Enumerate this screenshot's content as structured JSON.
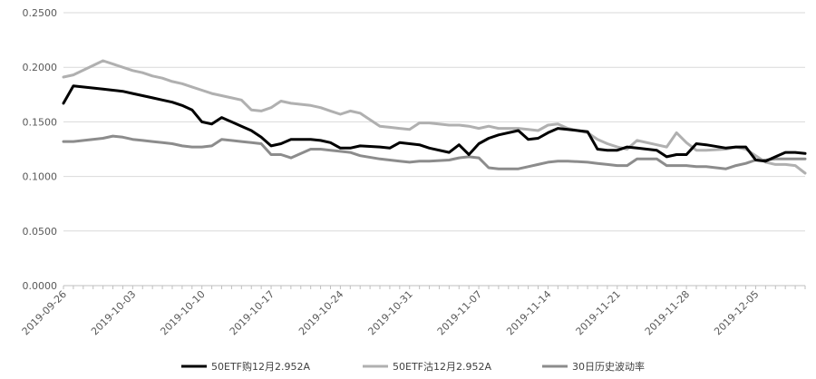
{
  "chart_data": {
    "type": "line",
    "title": "",
    "xlabel": "",
    "ylabel": "",
    "ylim": [
      0,
      0.25
    ],
    "y_ticks": [
      "0.0000",
      "0.0500",
      "0.1000",
      "0.1500",
      "0.2000",
      "0.2500"
    ],
    "x_ticks": [
      "2019-09-26",
      "2019-10-03",
      "2019-10-10",
      "2019-10-17",
      "2019-10-24",
      "2019-10-31",
      "2019-11-07",
      "2019-11-14",
      "2019-11-21",
      "2019-11-28",
      "2019-12-05"
    ],
    "x_start": "2019-09-26",
    "x_end": "2019-12-10",
    "grid": "horizontal",
    "legend_position": "bottom",
    "series": [
      {
        "name": "50ETF购12月2.952A",
        "color": "#000000",
        "points": [
          [
            "2019-09-26",
            0.167
          ],
          [
            "2019-09-27",
            0.183
          ],
          [
            "2019-09-30",
            0.18
          ],
          [
            "2019-10-01",
            0.179
          ],
          [
            "2019-10-02",
            0.178
          ],
          [
            "2019-10-03",
            0.176
          ],
          [
            "2019-10-04",
            0.174
          ],
          [
            "2019-10-05",
            0.172
          ],
          [
            "2019-10-06",
            0.17
          ],
          [
            "2019-10-07",
            0.168
          ],
          [
            "2019-10-08",
            0.165
          ],
          [
            "2019-10-09",
            0.161
          ],
          [
            "2019-10-10",
            0.15
          ],
          [
            "2019-10-11",
            0.148
          ],
          [
            "2019-10-12",
            0.154
          ],
          [
            "2019-10-14",
            0.146
          ],
          [
            "2019-10-15",
            0.142
          ],
          [
            "2019-10-16",
            0.136
          ],
          [
            "2019-10-17",
            0.128
          ],
          [
            "2019-10-18",
            0.13
          ],
          [
            "2019-10-19",
            0.134
          ],
          [
            "2019-10-21",
            0.134
          ],
          [
            "2019-10-22",
            0.133
          ],
          [
            "2019-10-23",
            0.131
          ],
          [
            "2019-10-24",
            0.126
          ],
          [
            "2019-10-25",
            0.126
          ],
          [
            "2019-10-26",
            0.128
          ],
          [
            "2019-10-28",
            0.127
          ],
          [
            "2019-10-29",
            0.126
          ],
          [
            "2019-10-30",
            0.131
          ],
          [
            "2019-10-31",
            0.13
          ],
          [
            "2019-11-01",
            0.129
          ],
          [
            "2019-11-02",
            0.126
          ],
          [
            "2019-11-04",
            0.122
          ],
          [
            "2019-11-05",
            0.129
          ],
          [
            "2019-11-06",
            0.12
          ],
          [
            "2019-11-07",
            0.13
          ],
          [
            "2019-11-08",
            0.135
          ],
          [
            "2019-11-09",
            0.138
          ],
          [
            "2019-11-11",
            0.142
          ],
          [
            "2019-11-12",
            0.134
          ],
          [
            "2019-11-13",
            0.135
          ],
          [
            "2019-11-14",
            0.14
          ],
          [
            "2019-11-15",
            0.144
          ],
          [
            "2019-11-16",
            0.143
          ],
          [
            "2019-11-18",
            0.141
          ],
          [
            "2019-11-19",
            0.125
          ],
          [
            "2019-11-20",
            0.124
          ],
          [
            "2019-11-21",
            0.124
          ],
          [
            "2019-11-22",
            0.127
          ],
          [
            "2019-11-23",
            0.126
          ],
          [
            "2019-11-25",
            0.124
          ],
          [
            "2019-11-26",
            0.118
          ],
          [
            "2019-11-27",
            0.12
          ],
          [
            "2019-11-28",
            0.12
          ],
          [
            "2019-11-29",
            0.13
          ],
          [
            "2019-11-30",
            0.129
          ],
          [
            "2019-12-02",
            0.126
          ],
          [
            "2019-12-03",
            0.127
          ],
          [
            "2019-12-04",
            0.127
          ],
          [
            "2019-12-05",
            0.115
          ],
          [
            "2019-12-06",
            0.114
          ],
          [
            "2019-12-07",
            0.118
          ],
          [
            "2019-12-08",
            0.122
          ],
          [
            "2019-12-09",
            0.122
          ],
          [
            "2019-12-10",
            0.121
          ]
        ]
      },
      {
        "name": "50ETF沽12月2.952A",
        "color": "#b0b0b0",
        "points": [
          [
            "2019-09-26",
            0.191
          ],
          [
            "2019-09-27",
            0.193
          ],
          [
            "2019-09-30",
            0.206
          ],
          [
            "2019-10-01",
            0.203
          ],
          [
            "2019-10-02",
            0.2
          ],
          [
            "2019-10-03",
            0.197
          ],
          [
            "2019-10-04",
            0.195
          ],
          [
            "2019-10-05",
            0.192
          ],
          [
            "2019-10-06",
            0.19
          ],
          [
            "2019-10-07",
            0.187
          ],
          [
            "2019-10-08",
            0.185
          ],
          [
            "2019-10-09",
            0.182
          ],
          [
            "2019-10-10",
            0.179
          ],
          [
            "2019-10-11",
            0.176
          ],
          [
            "2019-10-12",
            0.174
          ],
          [
            "2019-10-14",
            0.17
          ],
          [
            "2019-10-15",
            0.161
          ],
          [
            "2019-10-16",
            0.16
          ],
          [
            "2019-10-17",
            0.163
          ],
          [
            "2019-10-18",
            0.169
          ],
          [
            "2019-10-19",
            0.167
          ],
          [
            "2019-10-21",
            0.165
          ],
          [
            "2019-10-22",
            0.163
          ],
          [
            "2019-10-23",
            0.16
          ],
          [
            "2019-10-24",
            0.157
          ],
          [
            "2019-10-25",
            0.16
          ],
          [
            "2019-10-26",
            0.158
          ],
          [
            "2019-10-28",
            0.146
          ],
          [
            "2019-10-29",
            0.145
          ],
          [
            "2019-10-30",
            0.144
          ],
          [
            "2019-10-31",
            0.143
          ],
          [
            "2019-11-01",
            0.149
          ],
          [
            "2019-11-02",
            0.149
          ],
          [
            "2019-11-04",
            0.147
          ],
          [
            "2019-11-05",
            0.147
          ],
          [
            "2019-11-06",
            0.146
          ],
          [
            "2019-11-07",
            0.144
          ],
          [
            "2019-11-08",
            0.146
          ],
          [
            "2019-11-09",
            0.144
          ],
          [
            "2019-11-11",
            0.144
          ],
          [
            "2019-11-12",
            0.143
          ],
          [
            "2019-11-13",
            0.142
          ],
          [
            "2019-11-14",
            0.147
          ],
          [
            "2019-11-15",
            0.148
          ],
          [
            "2019-11-16",
            0.144
          ],
          [
            "2019-11-18",
            0.14
          ],
          [
            "2019-11-19",
            0.134
          ],
          [
            "2019-11-20",
            0.13
          ],
          [
            "2019-11-21",
            0.127
          ],
          [
            "2019-11-22",
            0.125
          ],
          [
            "2019-11-23",
            0.133
          ],
          [
            "2019-11-25",
            0.129
          ],
          [
            "2019-11-26",
            0.127
          ],
          [
            "2019-11-27",
            0.14
          ],
          [
            "2019-11-28",
            0.131
          ],
          [
            "2019-11-29",
            0.124
          ],
          [
            "2019-11-30",
            0.124
          ],
          [
            "2019-12-02",
            0.125
          ],
          [
            "2019-12-03",
            0.127
          ],
          [
            "2019-12-04",
            0.125
          ],
          [
            "2019-12-05",
            0.119
          ],
          [
            "2019-12-06",
            0.113
          ],
          [
            "2019-12-07",
            0.111
          ],
          [
            "2019-12-08",
            0.111
          ],
          [
            "2019-12-09",
            0.11
          ],
          [
            "2019-12-10",
            0.103
          ]
        ]
      },
      {
        "name": "30日历史波动率",
        "color": "#8c8c8c",
        "points": [
          [
            "2019-09-26",
            0.132
          ],
          [
            "2019-09-27",
            0.132
          ],
          [
            "2019-09-30",
            0.135
          ],
          [
            "2019-10-01",
            0.137
          ],
          [
            "2019-10-02",
            0.136
          ],
          [
            "2019-10-03",
            0.134
          ],
          [
            "2019-10-04",
            0.133
          ],
          [
            "2019-10-05",
            0.132
          ],
          [
            "2019-10-06",
            0.131
          ],
          [
            "2019-10-07",
            0.13
          ],
          [
            "2019-10-08",
            0.128
          ],
          [
            "2019-10-09",
            0.127
          ],
          [
            "2019-10-10",
            0.127
          ],
          [
            "2019-10-11",
            0.128
          ],
          [
            "2019-10-12",
            0.134
          ],
          [
            "2019-10-14",
            0.132
          ],
          [
            "2019-10-15",
            0.131
          ],
          [
            "2019-10-16",
            0.13
          ],
          [
            "2019-10-17",
            0.12
          ],
          [
            "2019-10-18",
            0.12
          ],
          [
            "2019-10-19",
            0.117
          ],
          [
            "2019-10-21",
            0.125
          ],
          [
            "2019-10-22",
            0.125
          ],
          [
            "2019-10-23",
            0.124
          ],
          [
            "2019-10-24",
            0.123
          ],
          [
            "2019-10-25",
            0.122
          ],
          [
            "2019-10-26",
            0.119
          ],
          [
            "2019-10-28",
            0.116
          ],
          [
            "2019-10-29",
            0.115
          ],
          [
            "2019-10-30",
            0.114
          ],
          [
            "2019-10-31",
            0.113
          ],
          [
            "2019-11-01",
            0.114
          ],
          [
            "2019-11-02",
            0.114
          ],
          [
            "2019-11-04",
            0.115
          ],
          [
            "2019-11-05",
            0.117
          ],
          [
            "2019-11-06",
            0.118
          ],
          [
            "2019-11-07",
            0.117
          ],
          [
            "2019-11-08",
            0.108
          ],
          [
            "2019-11-09",
            0.107
          ],
          [
            "2019-11-11",
            0.107
          ],
          [
            "2019-11-12",
            0.109
          ],
          [
            "2019-11-13",
            0.111
          ],
          [
            "2019-11-14",
            0.113
          ],
          [
            "2019-11-15",
            0.114
          ],
          [
            "2019-11-16",
            0.114
          ],
          [
            "2019-11-18",
            0.113
          ],
          [
            "2019-11-19",
            0.112
          ],
          [
            "2019-11-20",
            0.111
          ],
          [
            "2019-11-21",
            0.11
          ],
          [
            "2019-11-22",
            0.11
          ],
          [
            "2019-11-23",
            0.116
          ],
          [
            "2019-11-25",
            0.116
          ],
          [
            "2019-11-26",
            0.11
          ],
          [
            "2019-11-27",
            0.11
          ],
          [
            "2019-11-28",
            0.11
          ],
          [
            "2019-11-29",
            0.109
          ],
          [
            "2019-11-30",
            0.109
          ],
          [
            "2019-12-02",
            0.107
          ],
          [
            "2019-12-03",
            0.11
          ],
          [
            "2019-12-04",
            0.112
          ],
          [
            "2019-12-05",
            0.115
          ],
          [
            "2019-12-06",
            0.115
          ],
          [
            "2019-12-07",
            0.116
          ],
          [
            "2019-12-08",
            0.116
          ],
          [
            "2019-12-09",
            0.116
          ],
          [
            "2019-12-10",
            0.116
          ]
        ]
      }
    ]
  }
}
